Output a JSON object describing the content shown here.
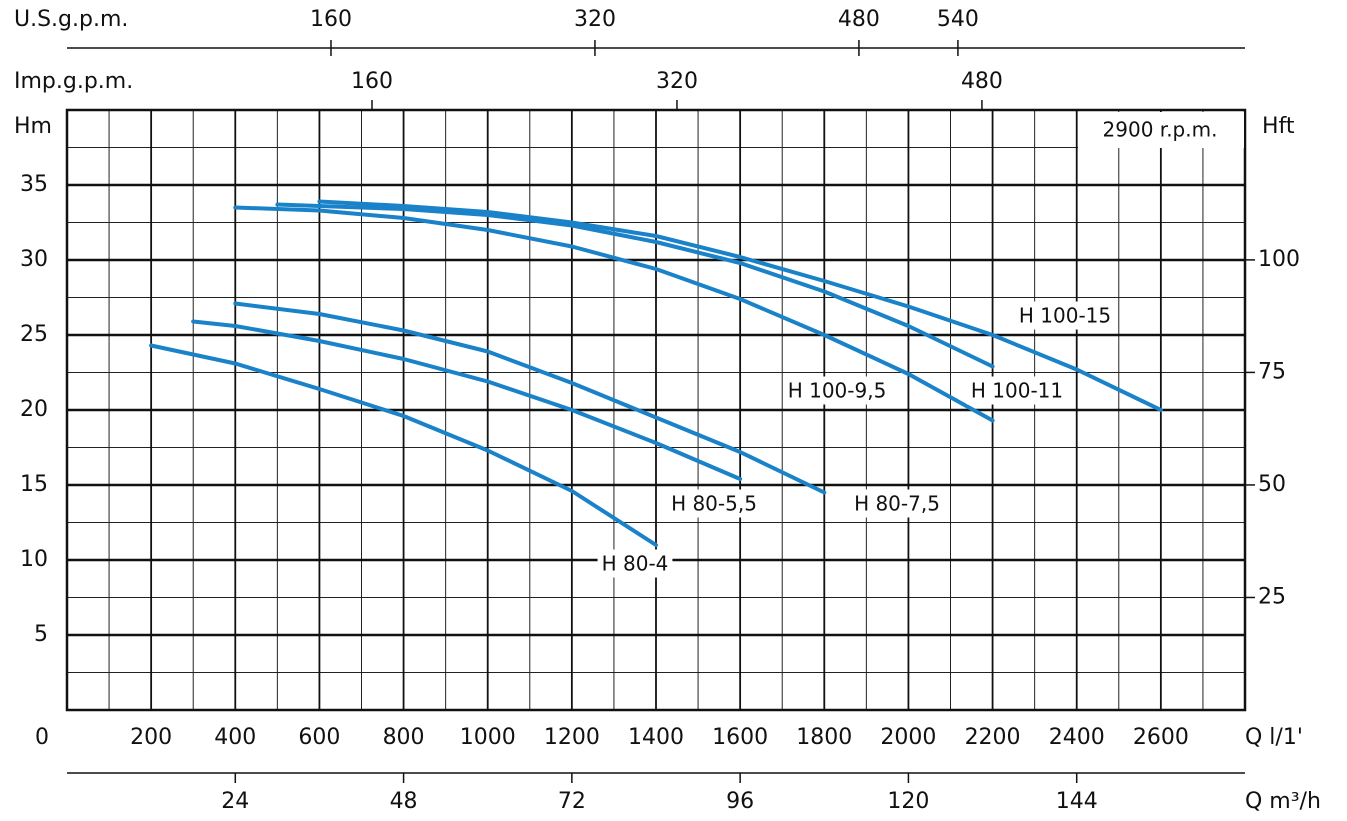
{
  "chart_data": {
    "type": "line",
    "rpm_label": "2900 r.p.m.",
    "x_label": "Q l/1'",
    "y_label": "Hm",
    "y2_label": "Hft",
    "top_axis_label": "U.S.g.p.m.",
    "top2_axis_label": "Imp.g.p.m.",
    "bottom2_axis_label": "Q m³/h",
    "xlim": [
      0,
      2800
    ],
    "xticks": [
      0,
      200,
      400,
      600,
      800,
      1000,
      1200,
      1400,
      1600,
      1800,
      2000,
      2200,
      2400,
      2600
    ],
    "ylim": [
      0,
      40
    ],
    "yticks": [
      5,
      10,
      15,
      20,
      25,
      30,
      35
    ],
    "y2lim": [
      0,
      133.3
    ],
    "y2ticks": [
      25,
      50,
      75,
      100
    ],
    "top_lim": [
      0,
      714
    ],
    "top_ticks": [
      160,
      320,
      480,
      540
    ],
    "top2_lim": [
      0,
      618
    ],
    "top2_ticks": [
      160,
      320,
      480
    ],
    "bottom2_lim": [
      0,
      168
    ],
    "bottom2_ticks": [
      24,
      48,
      72,
      96,
      120,
      144
    ],
    "x_minor_grid": [
      100,
      300,
      500,
      700,
      900,
      1100,
      1300,
      1500,
      1700,
      1900,
      2100,
      2300,
      2500,
      2700
    ],
    "y_minor_grid": [
      2.5,
      7.5,
      12.5,
      17.5,
      22.5,
      27.5,
      32.5,
      37.5
    ],
    "grid": true,
    "color": "#1a82c8",
    "series": [
      {
        "name": "H 80-4",
        "x": [
          200,
          400,
          600,
          800,
          1000,
          1200,
          1400
        ],
        "values": [
          24.3,
          23.1,
          21.4,
          19.6,
          17.3,
          14.6,
          11.0
        ]
      },
      {
        "name": "H 80-5,5",
        "x": [
          300,
          400,
          600,
          800,
          1000,
          1200,
          1400,
          1600
        ],
        "values": [
          25.9,
          25.6,
          24.6,
          23.4,
          21.9,
          20.0,
          17.8,
          15.4
        ]
      },
      {
        "name": "H 80-7,5",
        "x": [
          400,
          600,
          800,
          1000,
          1200,
          1400,
          1600,
          1800
        ],
        "values": [
          27.1,
          26.4,
          25.3,
          23.9,
          21.8,
          19.5,
          17.2,
          14.5
        ]
      },
      {
        "name": "H 100-9,5",
        "x": [
          400,
          600,
          800,
          1000,
          1200,
          1400,
          1600,
          1800,
          2000,
          2200
        ],
        "values": [
          33.5,
          33.3,
          32.8,
          32.0,
          30.9,
          29.4,
          27.4,
          25.0,
          22.4,
          19.3
        ]
      },
      {
        "name": "H 100-11",
        "x": [
          500,
          800,
          1000,
          1200,
          1400,
          1600,
          1800,
          2000,
          2200
        ],
        "values": [
          33.7,
          33.4,
          33.0,
          32.3,
          31.2,
          29.8,
          27.9,
          25.6,
          22.9
        ]
      },
      {
        "name": "H 100-15",
        "x": [
          600,
          800,
          1000,
          1200,
          1400,
          1600,
          1800,
          2000,
          2200,
          2400,
          2600
        ],
        "values": [
          33.9,
          33.6,
          33.2,
          32.5,
          31.6,
          30.2,
          28.6,
          26.9,
          25.0,
          22.7,
          20.0
        ]
      }
    ]
  }
}
